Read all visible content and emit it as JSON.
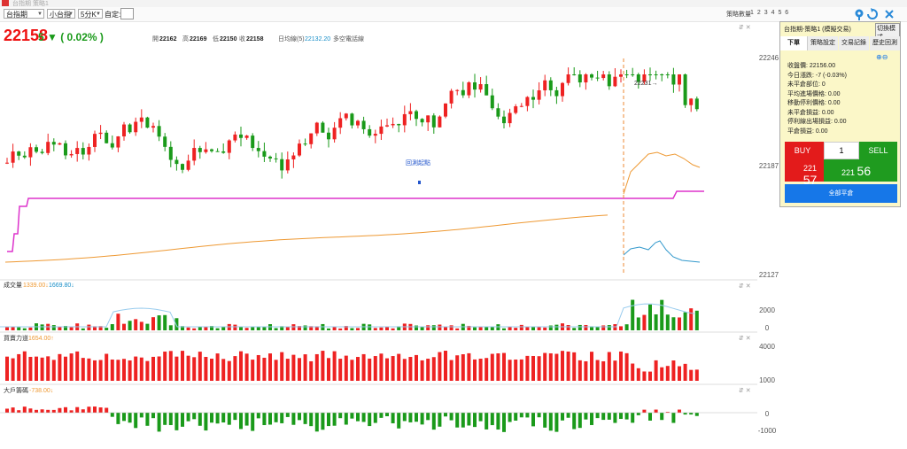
{
  "window": {
    "title": "台指期 策略1"
  },
  "toolbar": {
    "symbol_select": "台指期",
    "contract_select": "小台指",
    "period_select": "5分K",
    "custom_label": "自定:",
    "custom_value": "",
    "strategy_count_label": "策略數量",
    "strategy_slots": [
      "1",
      "2",
      "3",
      "4",
      "5",
      "6"
    ]
  },
  "header": {
    "last_price": "22158",
    "change_text": "5 ▼ ( 0.02% )",
    "ohlc": {
      "open_label": "開",
      "open": "22162",
      "high_label": "高",
      "high": "22169",
      "low_label": "低",
      "low": "22150",
      "close_label": "收",
      "close": "22158"
    },
    "ma_label": "日均線(5)",
    "ma_value": "22132.20",
    "ma_suffix": "多空電話線"
  },
  "colors": {
    "up": "#ee2222",
    "down": "#1a9a1a",
    "ma_line": "#ee9933",
    "cost_line": "#dd33cc",
    "signal_line": "#3399cc",
    "accent_blue": "#1677e8"
  },
  "main_chart": {
    "y_ticks": [
      "22246",
      "22187",
      "22127"
    ],
    "backtest_label": "回測起點",
    "peak_annotation": "22231→"
  },
  "sub_charts": [
    {
      "title": "成交量",
      "value1": "1339.00↓",
      "value2": "1669.80↓",
      "ticks": [
        "2000",
        "0"
      ]
    },
    {
      "title": "買賣力道",
      "value1": "1654.00↑",
      "ticks": [
        "4000",
        "1000"
      ]
    },
    {
      "title": "大戶籌碼",
      "value1": "-738.00↓",
      "ticks": [
        "0",
        "-1000"
      ]
    }
  ],
  "panel": {
    "title": "台指期-策略1 (模擬交易)",
    "mode_button": "切換模式",
    "tabs": [
      "下單",
      "策略設定",
      "交易記錄",
      "歷史回測"
    ],
    "stats": [
      "收盤價: 22156.00",
      "今日漲跌: -7 (-0.03%)",
      "未平倉部位: 0",
      "平均進場價格: 0.00",
      "移動停利價格: 0.00",
      "未平倉損益: 0.00",
      "停利線出場損益: 0.00",
      "平倉損益: 0.00"
    ],
    "buy_label": "BUY",
    "sell_label": "SELL",
    "quantity": "1",
    "buy_price_small": "221",
    "buy_price_big": "57",
    "sell_price_small": "221",
    "sell_price_big": "56",
    "close_all_label": "全部平倉"
  },
  "chart_data": [
    {
      "type": "candlestick",
      "title": "",
      "price_ticks": [
        22246,
        22187,
        22127
      ],
      "latest": {
        "open": 22162,
        "high": 22169,
        "low": 22150,
        "close": 22158
      },
      "ma5_daily": 22132.2,
      "annotations": [
        "回測起點",
        "22231→"
      ]
    },
    {
      "type": "bar",
      "title": "成交量",
      "ticks": [
        2000,
        0
      ],
      "current": 1339.0,
      "ma": 1669.8
    },
    {
      "type": "bar",
      "title": "買賣力道",
      "ticks": [
        4000,
        1000
      ],
      "current": 1654.0
    },
    {
      "type": "bar",
      "title": "大戶籌碼",
      "ticks": [
        0,
        -1000
      ],
      "current": -738.0
    }
  ]
}
